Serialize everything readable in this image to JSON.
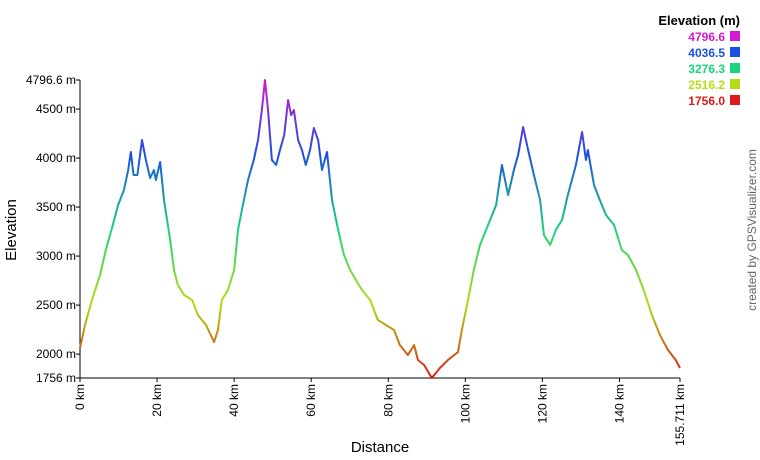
{
  "chart_data": {
    "type": "line",
    "x_label": "Distance",
    "y_label": "Elevation",
    "credit": "created by GPSVisualizer.com",
    "legend": {
      "title": "Elevation (m)",
      "stops": [
        {
          "value": 4796.6,
          "color": "#d21ad2"
        },
        {
          "value": 4036.5,
          "color": "#1a4fe0"
        },
        {
          "value": 3276.3,
          "color": "#18d47a"
        },
        {
          "value": 2516.2,
          "color": "#b2dd12"
        },
        {
          "value": 1756,
          "label": "1756.0",
          "color": "#dc1a1a"
        }
      ]
    },
    "x": [
      0,
      1.3,
      3.1,
      5.2,
      6.7,
      8.3,
      9.9,
      11.4,
      12.5,
      13.2,
      13.9,
      14.9,
      16.1,
      17.1,
      18.2,
      19.2,
      19.7,
      20.8,
      21.8,
      23.4,
      24.4,
      25.4,
      27.0,
      29.1,
      30.6,
      32.7,
      34.8,
      35.8,
      36.8,
      38.4,
      40.0,
      41.0,
      42.0,
      43.6,
      45.1,
      46.2,
      47.2,
      48.0,
      48.8,
      49.8,
      50.9,
      51.9,
      53.0,
      54.0,
      54.8,
      55.5,
      56.6,
      57.6,
      58.6,
      59.7,
      60.7,
      61.8,
      62.8,
      64.1,
      65.4,
      67.0,
      68.5,
      70.1,
      71.6,
      73.2,
      75.3,
      77.3,
      79.4,
      81.5,
      83.0,
      85.1,
      86.7,
      87.7,
      89.3,
      91.3,
      93.4,
      95.5,
      98.1,
      99.1,
      100.7,
      102.2,
      103.8,
      105.9,
      108.0,
      109.5,
      111.1,
      112.6,
      113.7,
      115.0,
      116.3,
      117.8,
      119.4,
      120.4,
      122.0,
      123.5,
      125.1,
      126.6,
      128.7,
      130.3,
      131.3,
      131.8,
      133.4,
      134.9,
      136.5,
      138.6,
      140.6,
      142.2,
      144.3,
      146.3,
      148.4,
      150.5,
      152.6,
      154.6,
      155.711
    ],
    "values": [
      2062,
      2297,
      2552,
      2807,
      3062,
      3287,
      3521,
      3674,
      3878,
      4062,
      3827,
      3827,
      4184,
      3980,
      3797,
      3878,
      3776,
      3960,
      3572,
      3164,
      2858,
      2705,
      2603,
      2552,
      2399,
      2297,
      2123,
      2246,
      2552,
      2654,
      2858,
      3266,
      3470,
      3776,
      3980,
      4184,
      4490,
      4796.6,
      4490,
      3980,
      3929,
      4082,
      4235,
      4592,
      4439,
      4490,
      4184,
      4082,
      3929,
      4082,
      4307,
      4184,
      3878,
      4062,
      3572,
      3266,
      3011,
      2858,
      2756,
      2654,
      2552,
      2348,
      2297,
      2246,
      2093,
      1991,
      2093,
      1940,
      1889,
      1756,
      1858,
      1940,
      2021,
      2246,
      2552,
      2858,
      3113,
      3317,
      3521,
      3929,
      3623,
      3878,
      4031,
      4317,
      4082,
      3827,
      3572,
      3215,
      3113,
      3266,
      3368,
      3623,
      3929,
      4266,
      3980,
      4082,
      3725,
      3572,
      3419,
      3317,
      3062,
      3011,
      2858,
      2654,
      2399,
      2195,
      2042,
      1940,
      1858
    ],
    "xlim": [
      0,
      155.711
    ],
    "ylim": [
      1756,
      4796.6
    ],
    "xticks": [
      {
        "value": 0,
        "label": "0 km"
      },
      {
        "value": 20,
        "label": "20 km"
      },
      {
        "value": 40,
        "label": "40 km"
      },
      {
        "value": 60,
        "label": "60 km"
      },
      {
        "value": 80,
        "label": "80 km"
      },
      {
        "value": 100,
        "label": "100 km"
      },
      {
        "value": 120,
        "label": "120 km"
      },
      {
        "value": 140,
        "label": "140 km"
      },
      {
        "value": 155.711,
        "label": "155.711 km"
      }
    ],
    "yticks": [
      {
        "value": 1756,
        "label": "1756 m"
      },
      {
        "value": 2000,
        "label": "2000 m"
      },
      {
        "value": 2500,
        "label": "2500 m"
      },
      {
        "value": 3000,
        "label": "3000 m"
      },
      {
        "value": 3500,
        "label": "3500 m"
      },
      {
        "value": 4000,
        "label": "4000 m"
      },
      {
        "value": 4500,
        "label": "4500 m"
      },
      {
        "value": 4796.6,
        "label": "4796.6 m"
      }
    ]
  }
}
